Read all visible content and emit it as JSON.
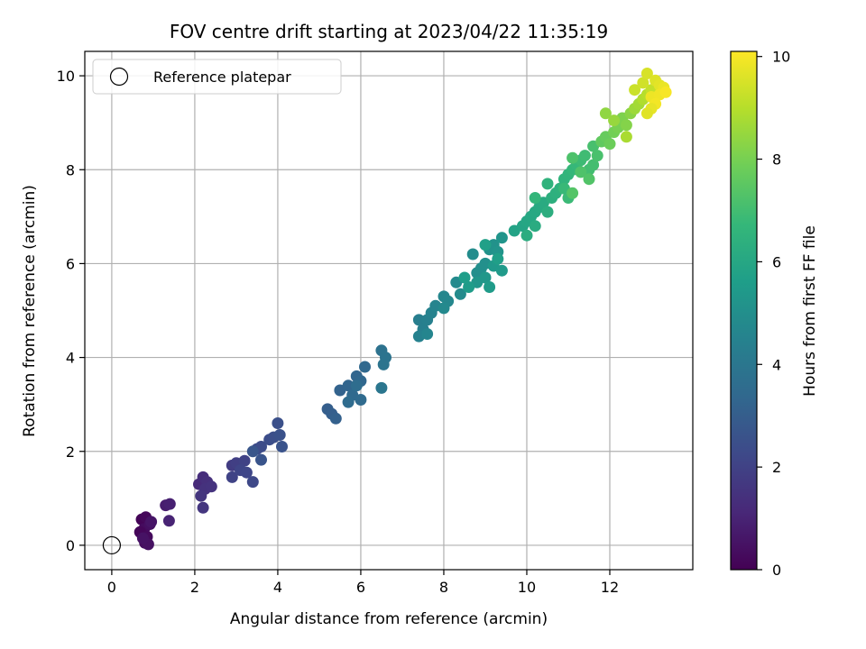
{
  "chart_data": {
    "type": "scatter",
    "title": "FOV centre drift starting at 2023/04/22 11:35:19",
    "xlabel": "Angular distance from reference (arcmin)",
    "ylabel": "Rotation from reference (arcmin)",
    "xlim": [
      -0.65,
      14.0
    ],
    "ylim": [
      -0.52,
      10.52
    ],
    "x_ticks": [
      0,
      2,
      4,
      6,
      8,
      10,
      12
    ],
    "y_ticks": [
      0,
      2,
      4,
      6,
      8,
      10
    ],
    "grid": true,
    "legend": {
      "position": "top-left",
      "entries": [
        {
          "label": "Reference platepar",
          "marker": "open-circle"
        }
      ]
    },
    "reference_point": {
      "x": 0,
      "y": 0
    },
    "colorbar": {
      "label": "Hours from first FF file",
      "colormap": "viridis",
      "range": [
        0,
        10.1
      ],
      "ticks": [
        0,
        2,
        4,
        6,
        8,
        10
      ]
    },
    "colormap_stops": [
      "#440154",
      "#482878",
      "#3e4989",
      "#31688e",
      "#26828e",
      "#1f9e89",
      "#35b779",
      "#6ece58",
      "#b5de2b",
      "#fde725"
    ],
    "points": [
      [
        0.72,
        0.55,
        0.1
      ],
      [
        0.82,
        0.6,
        0.2
      ],
      [
        0.78,
        0.35,
        0.3
      ],
      [
        0.92,
        0.45,
        0.4
      ],
      [
        0.68,
        0.28,
        0.15
      ],
      [
        0.85,
        0.18,
        0.25
      ],
      [
        0.8,
        0.05,
        0.35
      ],
      [
        0.88,
        0.02,
        0.45
      ],
      [
        0.75,
        0.15,
        0.5
      ],
      [
        0.95,
        0.5,
        0.55
      ],
      [
        1.3,
        0.85,
        0.8
      ],
      [
        1.4,
        0.88,
        0.9
      ],
      [
        1.38,
        0.52,
        1.0
      ],
      [
        2.1,
        1.3,
        1.2
      ],
      [
        2.2,
        1.45,
        1.3
      ],
      [
        2.3,
        1.35,
        1.4
      ],
      [
        2.25,
        1.2,
        1.45
      ],
      [
        2.4,
        1.25,
        1.5
      ],
      [
        2.15,
        1.05,
        1.55
      ],
      [
        2.2,
        0.8,
        1.6
      ],
      [
        2.9,
        1.7,
        1.8
      ],
      [
        3.0,
        1.75,
        1.9
      ],
      [
        3.2,
        1.8,
        2.0
      ],
      [
        2.9,
        1.45,
        2.05
      ],
      [
        3.1,
        1.6,
        2.1
      ],
      [
        3.25,
        1.55,
        2.15
      ],
      [
        3.4,
        1.35,
        2.2
      ],
      [
        3.5,
        2.05,
        2.3
      ],
      [
        3.6,
        2.1,
        2.35
      ],
      [
        3.8,
        2.25,
        2.4
      ],
      [
        3.9,
        2.3,
        2.45
      ],
      [
        4.0,
        2.6,
        2.5
      ],
      [
        4.05,
        2.35,
        2.55
      ],
      [
        4.1,
        2.1,
        2.6
      ],
      [
        3.6,
        1.82,
        2.65
      ],
      [
        3.4,
        2.0,
        2.7
      ],
      [
        5.2,
        2.9,
        3.0
      ],
      [
        5.3,
        2.8,
        3.05
      ],
      [
        5.4,
        2.7,
        3.1
      ],
      [
        5.5,
        3.3,
        3.2
      ],
      [
        5.7,
        3.4,
        3.25
      ],
      [
        5.9,
        3.6,
        3.3
      ],
      [
        6.0,
        3.5,
        3.35
      ],
      [
        6.1,
        3.8,
        3.4
      ],
      [
        5.8,
        3.2,
        3.45
      ],
      [
        6.0,
        3.1,
        3.5
      ],
      [
        5.7,
        3.05,
        3.55
      ],
      [
        5.9,
        3.4,
        3.6
      ],
      [
        6.5,
        4.15,
        3.8
      ],
      [
        6.6,
        4.0,
        3.85
      ],
      [
        6.55,
        3.85,
        3.9
      ],
      [
        6.5,
        3.35,
        3.95
      ],
      [
        7.4,
        4.8,
        4.3
      ],
      [
        7.5,
        4.6,
        4.35
      ],
      [
        7.6,
        4.8,
        4.4
      ],
      [
        7.4,
        4.45,
        4.45
      ],
      [
        7.7,
        4.95,
        4.5
      ],
      [
        7.8,
        5.1,
        4.55
      ],
      [
        7.6,
        4.5,
        4.6
      ],
      [
        8.0,
        5.3,
        4.65
      ],
      [
        8.1,
        5.2,
        4.7
      ],
      [
        8.0,
        5.05,
        4.75
      ],
      [
        8.3,
        5.6,
        4.8
      ],
      [
        8.4,
        5.35,
        4.85
      ],
      [
        8.7,
        6.2,
        4.9
      ],
      [
        8.8,
        5.8,
        4.95
      ],
      [
        8.9,
        5.9,
        5.0
      ],
      [
        9.0,
        6.0,
        5.05
      ],
      [
        9.1,
        6.3,
        5.1
      ],
      [
        9.2,
        6.4,
        5.15
      ],
      [
        9.3,
        6.25,
        5.2
      ],
      [
        9.4,
        6.55,
        5.25
      ],
      [
        8.8,
        5.6,
        5.3
      ],
      [
        9.0,
        5.7,
        5.35
      ],
      [
        9.2,
        5.95,
        5.4
      ],
      [
        9.4,
        5.85,
        5.45
      ],
      [
        9.1,
        5.5,
        5.5
      ],
      [
        8.6,
        5.5,
        5.55
      ],
      [
        8.5,
        5.7,
        5.6
      ],
      [
        9.3,
        6.1,
        5.65
      ],
      [
        9.0,
        6.4,
        5.7
      ],
      [
        9.7,
        6.7,
        5.85
      ],
      [
        9.9,
        6.8,
        5.9
      ],
      [
        10.0,
        6.9,
        5.95
      ],
      [
        10.1,
        7.0,
        6.0
      ],
      [
        10.2,
        7.1,
        6.05
      ],
      [
        10.3,
        7.2,
        6.1
      ],
      [
        10.4,
        7.3,
        6.15
      ],
      [
        10.2,
        6.8,
        6.2
      ],
      [
        10.0,
        6.6,
        6.25
      ],
      [
        10.5,
        7.1,
        6.3
      ],
      [
        10.6,
        7.4,
        6.35
      ],
      [
        10.7,
        7.5,
        6.4
      ],
      [
        10.8,
        7.6,
        6.45
      ],
      [
        10.5,
        7.7,
        6.5
      ],
      [
        10.9,
        7.8,
        6.55
      ],
      [
        11.0,
        7.9,
        6.6
      ],
      [
        10.2,
        7.4,
        6.65
      ],
      [
        11.1,
        8.0,
        6.7
      ],
      [
        11.2,
        8.1,
        6.75
      ],
      [
        10.9,
        7.6,
        6.8
      ],
      [
        11.0,
        7.4,
        6.85
      ],
      [
        11.3,
        8.2,
        6.9
      ],
      [
        11.4,
        8.3,
        6.95
      ],
      [
        11.5,
        8.0,
        7.0
      ],
      [
        11.6,
        8.1,
        7.05
      ],
      [
        11.6,
        8.5,
        7.1
      ],
      [
        11.7,
        8.3,
        7.15
      ],
      [
        11.1,
        8.25,
        7.2
      ],
      [
        11.3,
        7.95,
        7.25
      ],
      [
        11.5,
        7.8,
        7.3
      ],
      [
        11.1,
        7.5,
        7.35
      ],
      [
        11.8,
        8.6,
        7.6
      ],
      [
        11.9,
        8.7,
        7.7
      ],
      [
        12.0,
        8.55,
        7.8
      ],
      [
        12.1,
        8.8,
        7.9
      ],
      [
        12.2,
        8.9,
        8.0
      ],
      [
        12.3,
        9.1,
        8.1
      ],
      [
        12.4,
        8.95,
        8.2
      ],
      [
        12.5,
        9.2,
        8.3
      ],
      [
        11.9,
        9.2,
        8.4
      ],
      [
        12.1,
        9.05,
        8.5
      ],
      [
        12.6,
        9.3,
        8.6
      ],
      [
        12.7,
        9.4,
        8.7
      ],
      [
        12.4,
        8.7,
        8.8
      ],
      [
        12.8,
        9.5,
        8.9
      ],
      [
        12.9,
        9.6,
        9.0
      ],
      [
        13.0,
        9.7,
        9.2
      ],
      [
        12.6,
        9.7,
        9.3
      ],
      [
        12.8,
        9.85,
        9.4
      ],
      [
        12.9,
        10.05,
        9.5
      ],
      [
        13.1,
        9.9,
        9.6
      ],
      [
        13.2,
        9.8,
        9.7
      ],
      [
        13.3,
        9.75,
        9.8
      ],
      [
        13.0,
        9.55,
        9.85
      ],
      [
        13.2,
        9.6,
        9.9
      ],
      [
        13.1,
        9.4,
        9.95
      ],
      [
        13.35,
        9.65,
        10.0
      ],
      [
        13.0,
        9.3,
        9.75
      ],
      [
        12.9,
        9.2,
        9.65
      ]
    ]
  }
}
